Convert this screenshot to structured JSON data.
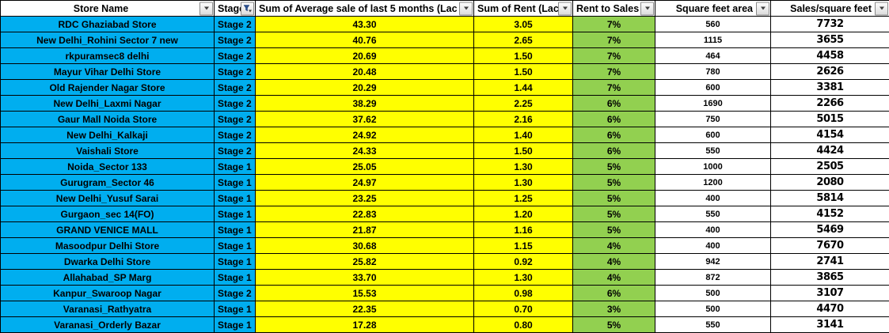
{
  "colors": {
    "cyan_fill": "#00AEEF",
    "yellow_fill": "#FFFF00",
    "green_fill": "#92D050",
    "header_fill": "#FFFFFF",
    "grid_border": "#000000",
    "text": "#000000"
  },
  "table": {
    "columns": [
      {
        "label": "Store Name",
        "filter_state": "dropdown"
      },
      {
        "label": "Stage",
        "filter_state": "filtered"
      },
      {
        "label": "Sum of Average sale of last 5 months (Lac",
        "filter_state": "dropdown"
      },
      {
        "label": "Sum of Rent (Lac",
        "filter_state": "dropdown"
      },
      {
        "label": "Rent to Sales",
        "filter_state": "dropdown"
      },
      {
        "label": "Square feet area",
        "filter_state": "dropdown"
      },
      {
        "label": "Sales/square feet",
        "filter_state": "dropdown"
      }
    ],
    "rows": [
      {
        "store": "RDC Ghaziabad Store",
        "stage": "Stage 2",
        "avg_sale": "43.30",
        "rent": "3.05",
        "rent_to_sales": "7%",
        "sqft": "560",
        "sales_per_sqft": "7732"
      },
      {
        "store": "New Delhi_Rohini Sector 7 new",
        "stage": "Stage 2",
        "avg_sale": "40.76",
        "rent": "2.65",
        "rent_to_sales": "7%",
        "sqft": "1115",
        "sales_per_sqft": "3655"
      },
      {
        "store": "rkpuramsec8 delhi",
        "stage": "Stage 2",
        "avg_sale": "20.69",
        "rent": "1.50",
        "rent_to_sales": "7%",
        "sqft": "464",
        "sales_per_sqft": "4458"
      },
      {
        "store": "Mayur Vihar Delhi Store",
        "stage": "Stage 2",
        "avg_sale": "20.48",
        "rent": "1.50",
        "rent_to_sales": "7%",
        "sqft": "780",
        "sales_per_sqft": "2626"
      },
      {
        "store": "Old Rajender Nagar Store",
        "stage": "Stage 2",
        "avg_sale": "20.29",
        "rent": "1.44",
        "rent_to_sales": "7%",
        "sqft": "600",
        "sales_per_sqft": "3381"
      },
      {
        "store": "New Delhi_Laxmi Nagar",
        "stage": "Stage 2",
        "avg_sale": "38.29",
        "rent": "2.25",
        "rent_to_sales": "6%",
        "sqft": "1690",
        "sales_per_sqft": "2266"
      },
      {
        "store": "Gaur Mall Noida Store",
        "stage": "Stage 2",
        "avg_sale": "37.62",
        "rent": "2.16",
        "rent_to_sales": "6%",
        "sqft": "750",
        "sales_per_sqft": "5015"
      },
      {
        "store": "New Delhi_Kalkaji",
        "stage": "Stage 2",
        "avg_sale": "24.92",
        "rent": "1.40",
        "rent_to_sales": "6%",
        "sqft": "600",
        "sales_per_sqft": "4154"
      },
      {
        "store": "Vaishali Store",
        "stage": "Stage 2",
        "avg_sale": "24.33",
        "rent": "1.50",
        "rent_to_sales": "6%",
        "sqft": "550",
        "sales_per_sqft": "4424"
      },
      {
        "store": "Noida_Sector 133",
        "stage": "Stage 1",
        "avg_sale": "25.05",
        "rent": "1.30",
        "rent_to_sales": "5%",
        "sqft": "1000",
        "sales_per_sqft": "2505"
      },
      {
        "store": "Gurugram_Sector 46",
        "stage": "Stage 1",
        "avg_sale": "24.97",
        "rent": "1.30",
        "rent_to_sales": "5%",
        "sqft": "1200",
        "sales_per_sqft": "2080"
      },
      {
        "store": "New Delhi_Yusuf Sarai",
        "stage": "Stage 1",
        "avg_sale": "23.25",
        "rent": "1.25",
        "rent_to_sales": "5%",
        "sqft": "400",
        "sales_per_sqft": "5814"
      },
      {
        "store": "Gurgaon_sec 14(FO)",
        "stage": "Stage 1",
        "avg_sale": "22.83",
        "rent": "1.20",
        "rent_to_sales": "5%",
        "sqft": "550",
        "sales_per_sqft": "4152"
      },
      {
        "store": "GRAND VENICE MALL",
        "stage": "Stage 1",
        "avg_sale": "21.87",
        "rent": "1.16",
        "rent_to_sales": "5%",
        "sqft": "400",
        "sales_per_sqft": "5469"
      },
      {
        "store": "Masoodpur Delhi Store",
        "stage": "Stage 1",
        "avg_sale": "30.68",
        "rent": "1.15",
        "rent_to_sales": "4%",
        "sqft": "400",
        "sales_per_sqft": "7670"
      },
      {
        "store": "Dwarka Delhi Store",
        "stage": "Stage 1",
        "avg_sale": "25.82",
        "rent": "0.92",
        "rent_to_sales": "4%",
        "sqft": "942",
        "sales_per_sqft": "2741"
      },
      {
        "store": "Allahabad_SP Marg",
        "stage": "Stage 1",
        "avg_sale": "33.70",
        "rent": "1.30",
        "rent_to_sales": "4%",
        "sqft": "872",
        "sales_per_sqft": "3865"
      },
      {
        "store": "Kanpur_Swaroop Nagar",
        "stage": "Stage 2",
        "avg_sale": "15.53",
        "rent": "0.98",
        "rent_to_sales": "6%",
        "sqft": "500",
        "sales_per_sqft": "3107"
      },
      {
        "store": "Varanasi_Rathyatra",
        "stage": "Stage 1",
        "avg_sale": "22.35",
        "rent": "0.70",
        "rent_to_sales": "3%",
        "sqft": "500",
        "sales_per_sqft": "4470"
      },
      {
        "store": "Varanasi_Orderly Bazar",
        "stage": "Stage 1",
        "avg_sale": "17.28",
        "rent": "0.80",
        "rent_to_sales": "5%",
        "sqft": "550",
        "sales_per_sqft": "3141"
      }
    ]
  }
}
